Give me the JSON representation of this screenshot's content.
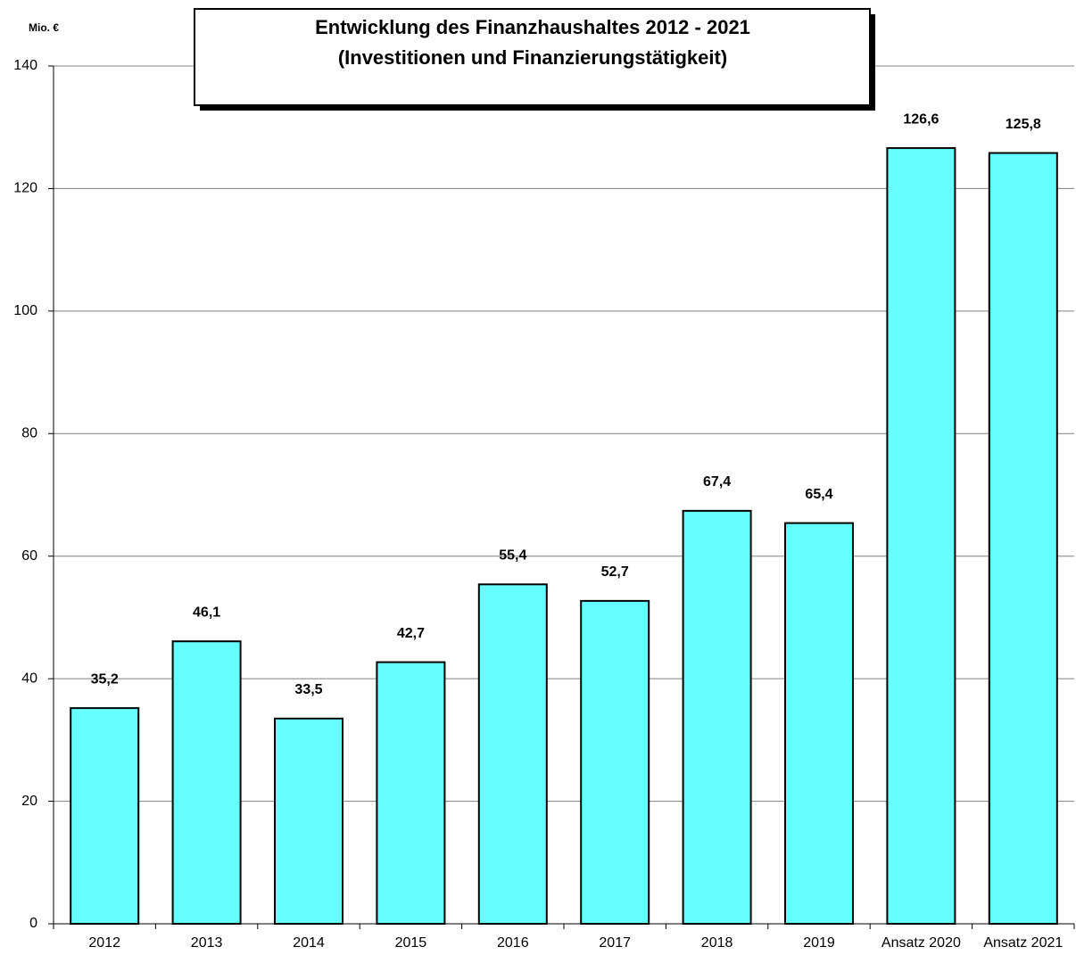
{
  "chart_data": {
    "type": "bar",
    "title": "Entwicklung des Finanzhaushaltes 2012 - 2021",
    "subtitle": "(Investitionen und Finanzierungstätigkeit)",
    "y_label": "Mio. €",
    "categories": [
      "2012",
      "2013",
      "2014",
      "2015",
      "2016",
      "2017",
      "2018",
      "2019",
      "Ansatz 2020",
      "Ansatz 2021"
    ],
    "values": [
      35.2,
      46.1,
      33.5,
      42.7,
      55.4,
      52.7,
      67.4,
      65.4,
      126.6,
      125.8
    ],
    "value_labels": [
      "35,2",
      "46,1",
      "33,5",
      "42,7",
      "55,4",
      "52,7",
      "67,4",
      "65,4",
      "126,6",
      "125,8"
    ],
    "color": "#66ffff",
    "ylim": [
      0,
      140
    ],
    "yticks": [
      0,
      20,
      40,
      60,
      80,
      100,
      120,
      140
    ],
    "grid": true
  }
}
